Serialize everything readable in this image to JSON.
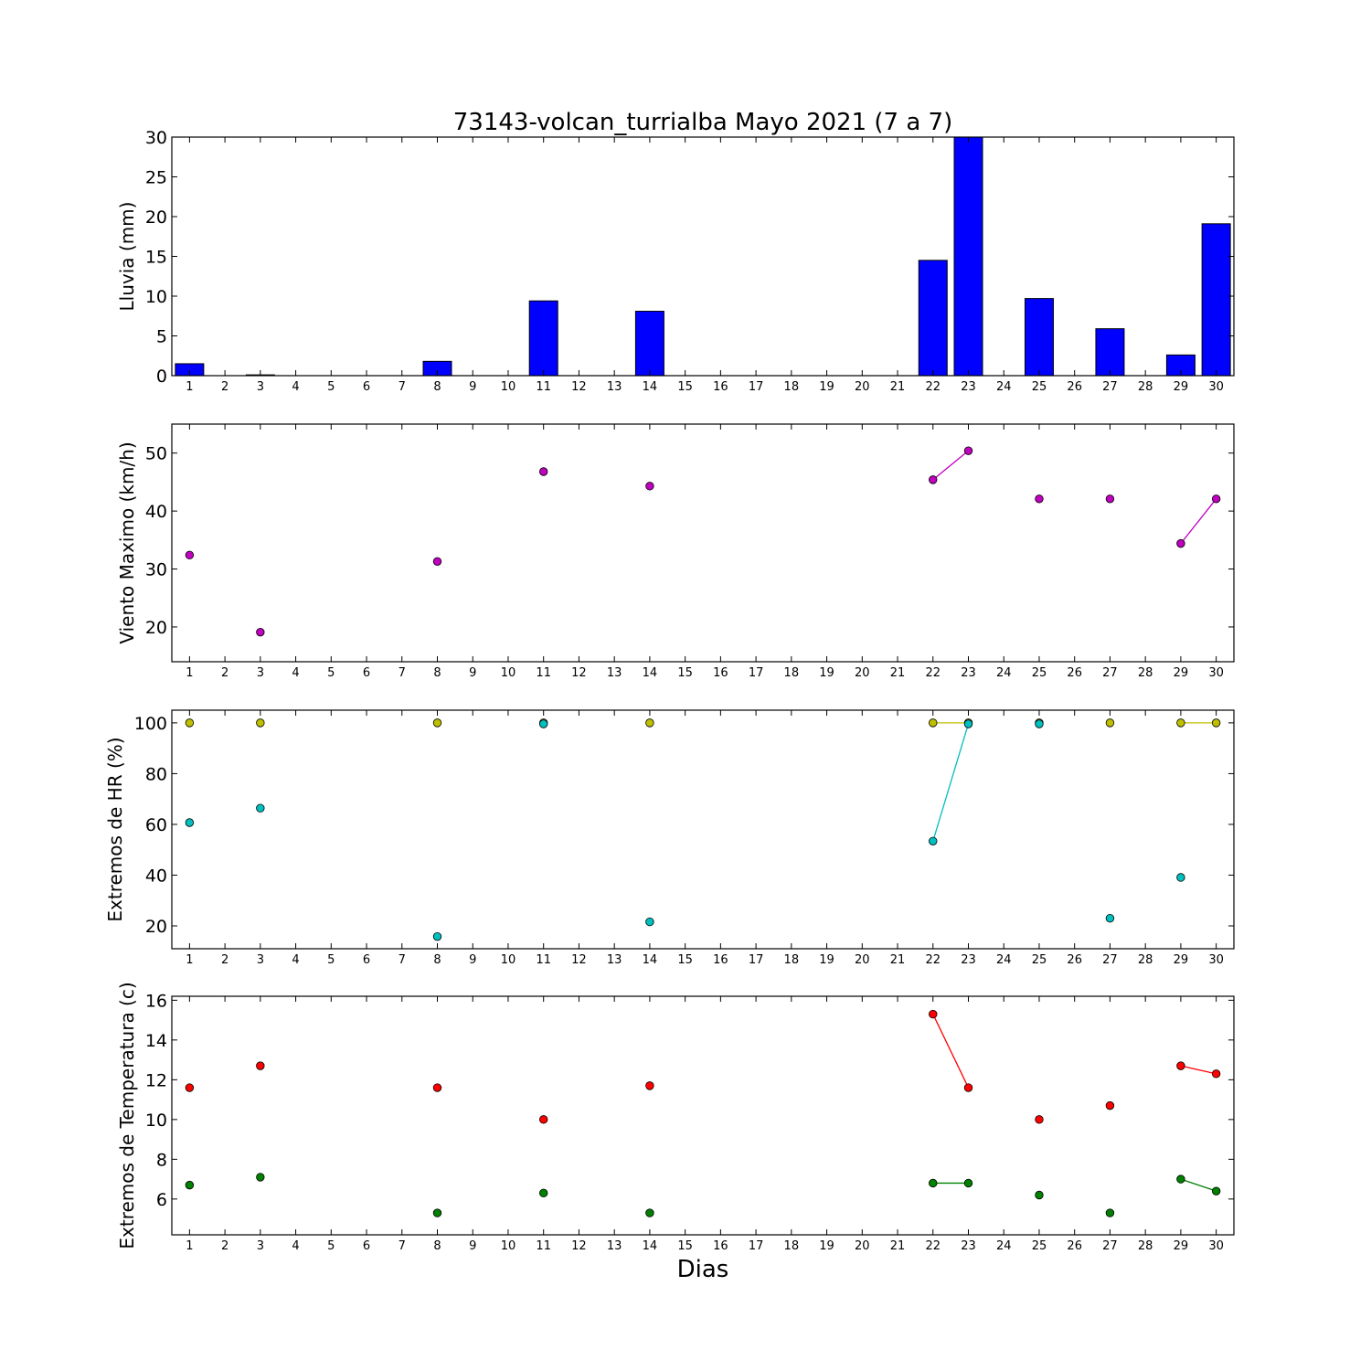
{
  "figure": {
    "title": "73143-volcan_turrialba Mayo 2021  (7 a 7)",
    "xlabel": "Dias"
  },
  "chart_data": [
    {
      "type": "bar",
      "ylabel": "Lluvia (mm)",
      "ylim": [
        0,
        30
      ],
      "yticks": [
        0,
        5,
        10,
        15,
        20,
        25,
        30
      ],
      "xlim": [
        0.5,
        30.5
      ],
      "xticks": [
        1,
        2,
        3,
        4,
        5,
        6,
        7,
        8,
        9,
        10,
        11,
        12,
        13,
        14,
        15,
        16,
        17,
        18,
        19,
        20,
        21,
        22,
        23,
        24,
        25,
        26,
        27,
        28,
        29,
        30
      ],
      "grid": false,
      "series": [
        {
          "color": "#0000ff",
          "points": [
            [
              1,
              1.5
            ],
            [
              3,
              0.1
            ],
            [
              8,
              1.8
            ],
            [
              11,
              9.4
            ],
            [
              14,
              8.1
            ],
            [
              22,
              14.5
            ],
            [
              23,
              30
            ],
            [
              25,
              9.7
            ],
            [
              27,
              5.9
            ],
            [
              29,
              2.6
            ],
            [
              30,
              19.1
            ]
          ]
        }
      ]
    },
    {
      "type": "line",
      "ylabel": "Viento Maximo (km/h)",
      "ylim": [
        14,
        55
      ],
      "yticks": [
        20,
        30,
        40,
        50
      ],
      "xlim": [
        0.5,
        30.5
      ],
      "xticks": [
        1,
        2,
        3,
        4,
        5,
        6,
        7,
        8,
        9,
        10,
        11,
        12,
        13,
        14,
        15,
        16,
        17,
        18,
        19,
        20,
        21,
        22,
        23,
        24,
        25,
        26,
        27,
        28,
        29,
        30
      ],
      "grid": false,
      "series": [
        {
          "color": "#bf00bf",
          "points": [
            [
              1,
              32.4
            ],
            [
              3,
              19.1
            ],
            [
              8,
              31.3
            ],
            [
              11,
              46.8
            ],
            [
              14,
              44.3
            ],
            [
              22,
              45.4
            ],
            [
              23,
              50.4
            ],
            [
              25,
              42.1
            ],
            [
              27,
              42.1
            ],
            [
              29,
              34.4
            ],
            [
              30,
              42.1
            ]
          ]
        }
      ]
    },
    {
      "type": "line",
      "ylabel": "Extremos de HR (%)",
      "ylim": [
        11,
        105
      ],
      "yticks": [
        20,
        40,
        60,
        80,
        100
      ],
      "xlim": [
        0.5,
        30.5
      ],
      "xticks": [
        1,
        2,
        3,
        4,
        5,
        6,
        7,
        8,
        9,
        10,
        11,
        12,
        13,
        14,
        15,
        16,
        17,
        18,
        19,
        20,
        21,
        22,
        23,
        24,
        25,
        26,
        27,
        28,
        29,
        30
      ],
      "grid": false,
      "series": [
        {
          "color": "#bfbf00",
          "points": [
            [
              1,
              100
            ],
            [
              3,
              100
            ],
            [
              8,
              100
            ],
            [
              11,
              100
            ],
            [
              14,
              100
            ],
            [
              22,
              100
            ],
            [
              23,
              100
            ],
            [
              25,
              100
            ],
            [
              27,
              100
            ],
            [
              29,
              100
            ],
            [
              30,
              100
            ]
          ]
        },
        {
          "color": "#00bfbf",
          "points": [
            [
              1,
              60.7
            ],
            [
              3,
              66.4
            ],
            [
              8,
              15.8
            ],
            [
              11,
              99.6
            ],
            [
              14,
              21.6
            ],
            [
              22,
              53.4
            ],
            [
              23,
              99.6
            ],
            [
              25,
              99.6
            ],
            [
              27,
              23
            ],
            [
              29,
              39.1
            ]
          ]
        }
      ]
    },
    {
      "type": "line",
      "ylabel": "Extremos de Temperatura (c)",
      "ylim": [
        4.2,
        16.2
      ],
      "yticks": [
        6,
        8,
        10,
        12,
        14,
        16
      ],
      "xlim": [
        0.5,
        30.5
      ],
      "xticks": [
        1,
        2,
        3,
        4,
        5,
        6,
        7,
        8,
        9,
        10,
        11,
        12,
        13,
        14,
        15,
        16,
        17,
        18,
        19,
        20,
        21,
        22,
        23,
        24,
        25,
        26,
        27,
        28,
        29,
        30
      ],
      "grid": false,
      "series": [
        {
          "color": "#ff0000",
          "points": [
            [
              1,
              11.6
            ],
            [
              3,
              12.7
            ],
            [
              8,
              11.6
            ],
            [
              11,
              10
            ],
            [
              14,
              11.7
            ],
            [
              22,
              15.3
            ],
            [
              23,
              11.6
            ],
            [
              25,
              10
            ],
            [
              27,
              10.7
            ],
            [
              29,
              12.7
            ],
            [
              30,
              12.3
            ]
          ]
        },
        {
          "color": "#008000",
          "points": [
            [
              1,
              6.7
            ],
            [
              3,
              7.1
            ],
            [
              8,
              5.3
            ],
            [
              11,
              6.3
            ],
            [
              14,
              5.3
            ],
            [
              22,
              6.8
            ],
            [
              23,
              6.8
            ],
            [
              25,
              6.2
            ],
            [
              27,
              5.3
            ],
            [
              29,
              7
            ],
            [
              30,
              6.4
            ]
          ]
        }
      ]
    }
  ]
}
